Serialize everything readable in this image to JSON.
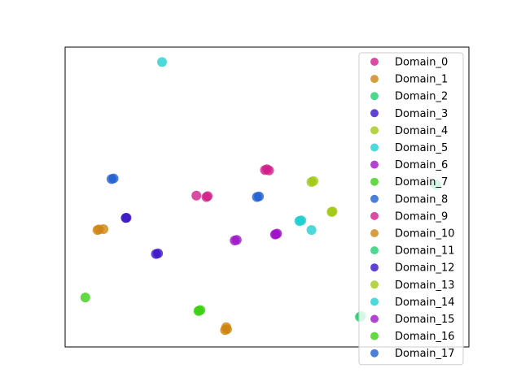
{
  "chart_data": {
    "type": "scatter",
    "title": "",
    "xlabel": "",
    "ylabel": "",
    "xlim": [
      0,
      100
    ],
    "ylim": [
      0,
      100
    ],
    "axis_ticks": false,
    "grid": false,
    "legend": {
      "placement": "right",
      "marker": "circle"
    },
    "series": [
      {
        "name": "Domain_0",
        "color": "#d01f8a",
        "points": [
          [
            49.5,
            59.0
          ],
          [
            50.0,
            59.3
          ],
          [
            50.5,
            58.9
          ]
        ]
      },
      {
        "name": "Domain_1",
        "color": "#d08512",
        "points": [
          [
            39.6,
            5.6
          ],
          [
            40.1,
            5.9
          ],
          [
            39.9,
            6.6
          ]
        ]
      },
      {
        "name": "Domain_2",
        "color": "#20d070",
        "points": [
          [
            73.0,
            10.0
          ],
          [
            73.3,
            10.3
          ],
          [
            92.0,
            54.0
          ]
        ]
      },
      {
        "name": "Domain_3",
        "color": "#3a14c8",
        "points": [
          [
            22.5,
            31.0
          ],
          [
            23.0,
            31.2
          ],
          [
            15.0,
            43.0
          ]
        ]
      },
      {
        "name": "Domain_4",
        "color": "#a0c810",
        "points": [
          [
            61.0,
            55.0
          ],
          [
            61.5,
            55.3
          ],
          [
            66.0,
            45.0
          ]
        ]
      },
      {
        "name": "Domain_5",
        "color": "#20d0d0",
        "points": [
          [
            58.0,
            42.0
          ],
          [
            58.5,
            42.2
          ],
          [
            61.0,
            39.0
          ],
          [
            24.0,
            95.0
          ]
        ]
      },
      {
        "name": "Domain_6",
        "color": "#a014c8",
        "points": [
          [
            42.0,
            35.5
          ],
          [
            42.5,
            35.7
          ],
          [
            52.0,
            37.5
          ],
          [
            52.5,
            37.8
          ]
        ]
      },
      {
        "name": "Domain_7",
        "color": "#3cd014",
        "points": [
          [
            33.0,
            12.0
          ],
          [
            33.5,
            12.3
          ]
        ]
      },
      {
        "name": "Domain_8",
        "color": "#1f5fd0",
        "points": [
          [
            47.5,
            50.0
          ],
          [
            48.0,
            50.2
          ]
        ]
      },
      {
        "name": "Domain_9",
        "color": "#d01f8a",
        "points": [
          [
            32.5,
            50.5
          ],
          [
            35.0,
            50.0
          ],
          [
            35.3,
            50.3
          ]
        ]
      },
      {
        "name": "Domain_10",
        "color": "#d08512",
        "points": [
          [
            8.0,
            39.0
          ],
          [
            8.4,
            39.2
          ],
          [
            9.5,
            39.3
          ]
        ]
      },
      {
        "name": "Domain_11",
        "color": "#20d070",
        "points": [
          [
            91.7,
            54.2
          ]
        ]
      },
      {
        "name": "Domain_12",
        "color": "#3a14c8",
        "points": [
          [
            15.2,
            43.1
          ]
        ]
      },
      {
        "name": "Domain_13",
        "color": "#a0c810",
        "points": [
          [
            66.2,
            45.2
          ]
        ]
      },
      {
        "name": "Domain_14",
        "color": "#20d0d0",
        "points": [
          [
            58.2,
            42.1
          ]
        ]
      },
      {
        "name": "Domain_15",
        "color": "#a014c8",
        "points": [
          [
            52.2,
            37.6
          ]
        ]
      },
      {
        "name": "Domain_16",
        "color": "#3cd014",
        "points": [
          [
            5.0,
            16.5
          ],
          [
            33.2,
            12.1
          ]
        ]
      },
      {
        "name": "Domain_17",
        "color": "#1f5fd0",
        "points": [
          [
            11.5,
            56.0
          ],
          [
            12.0,
            56.2
          ]
        ]
      }
    ]
  }
}
